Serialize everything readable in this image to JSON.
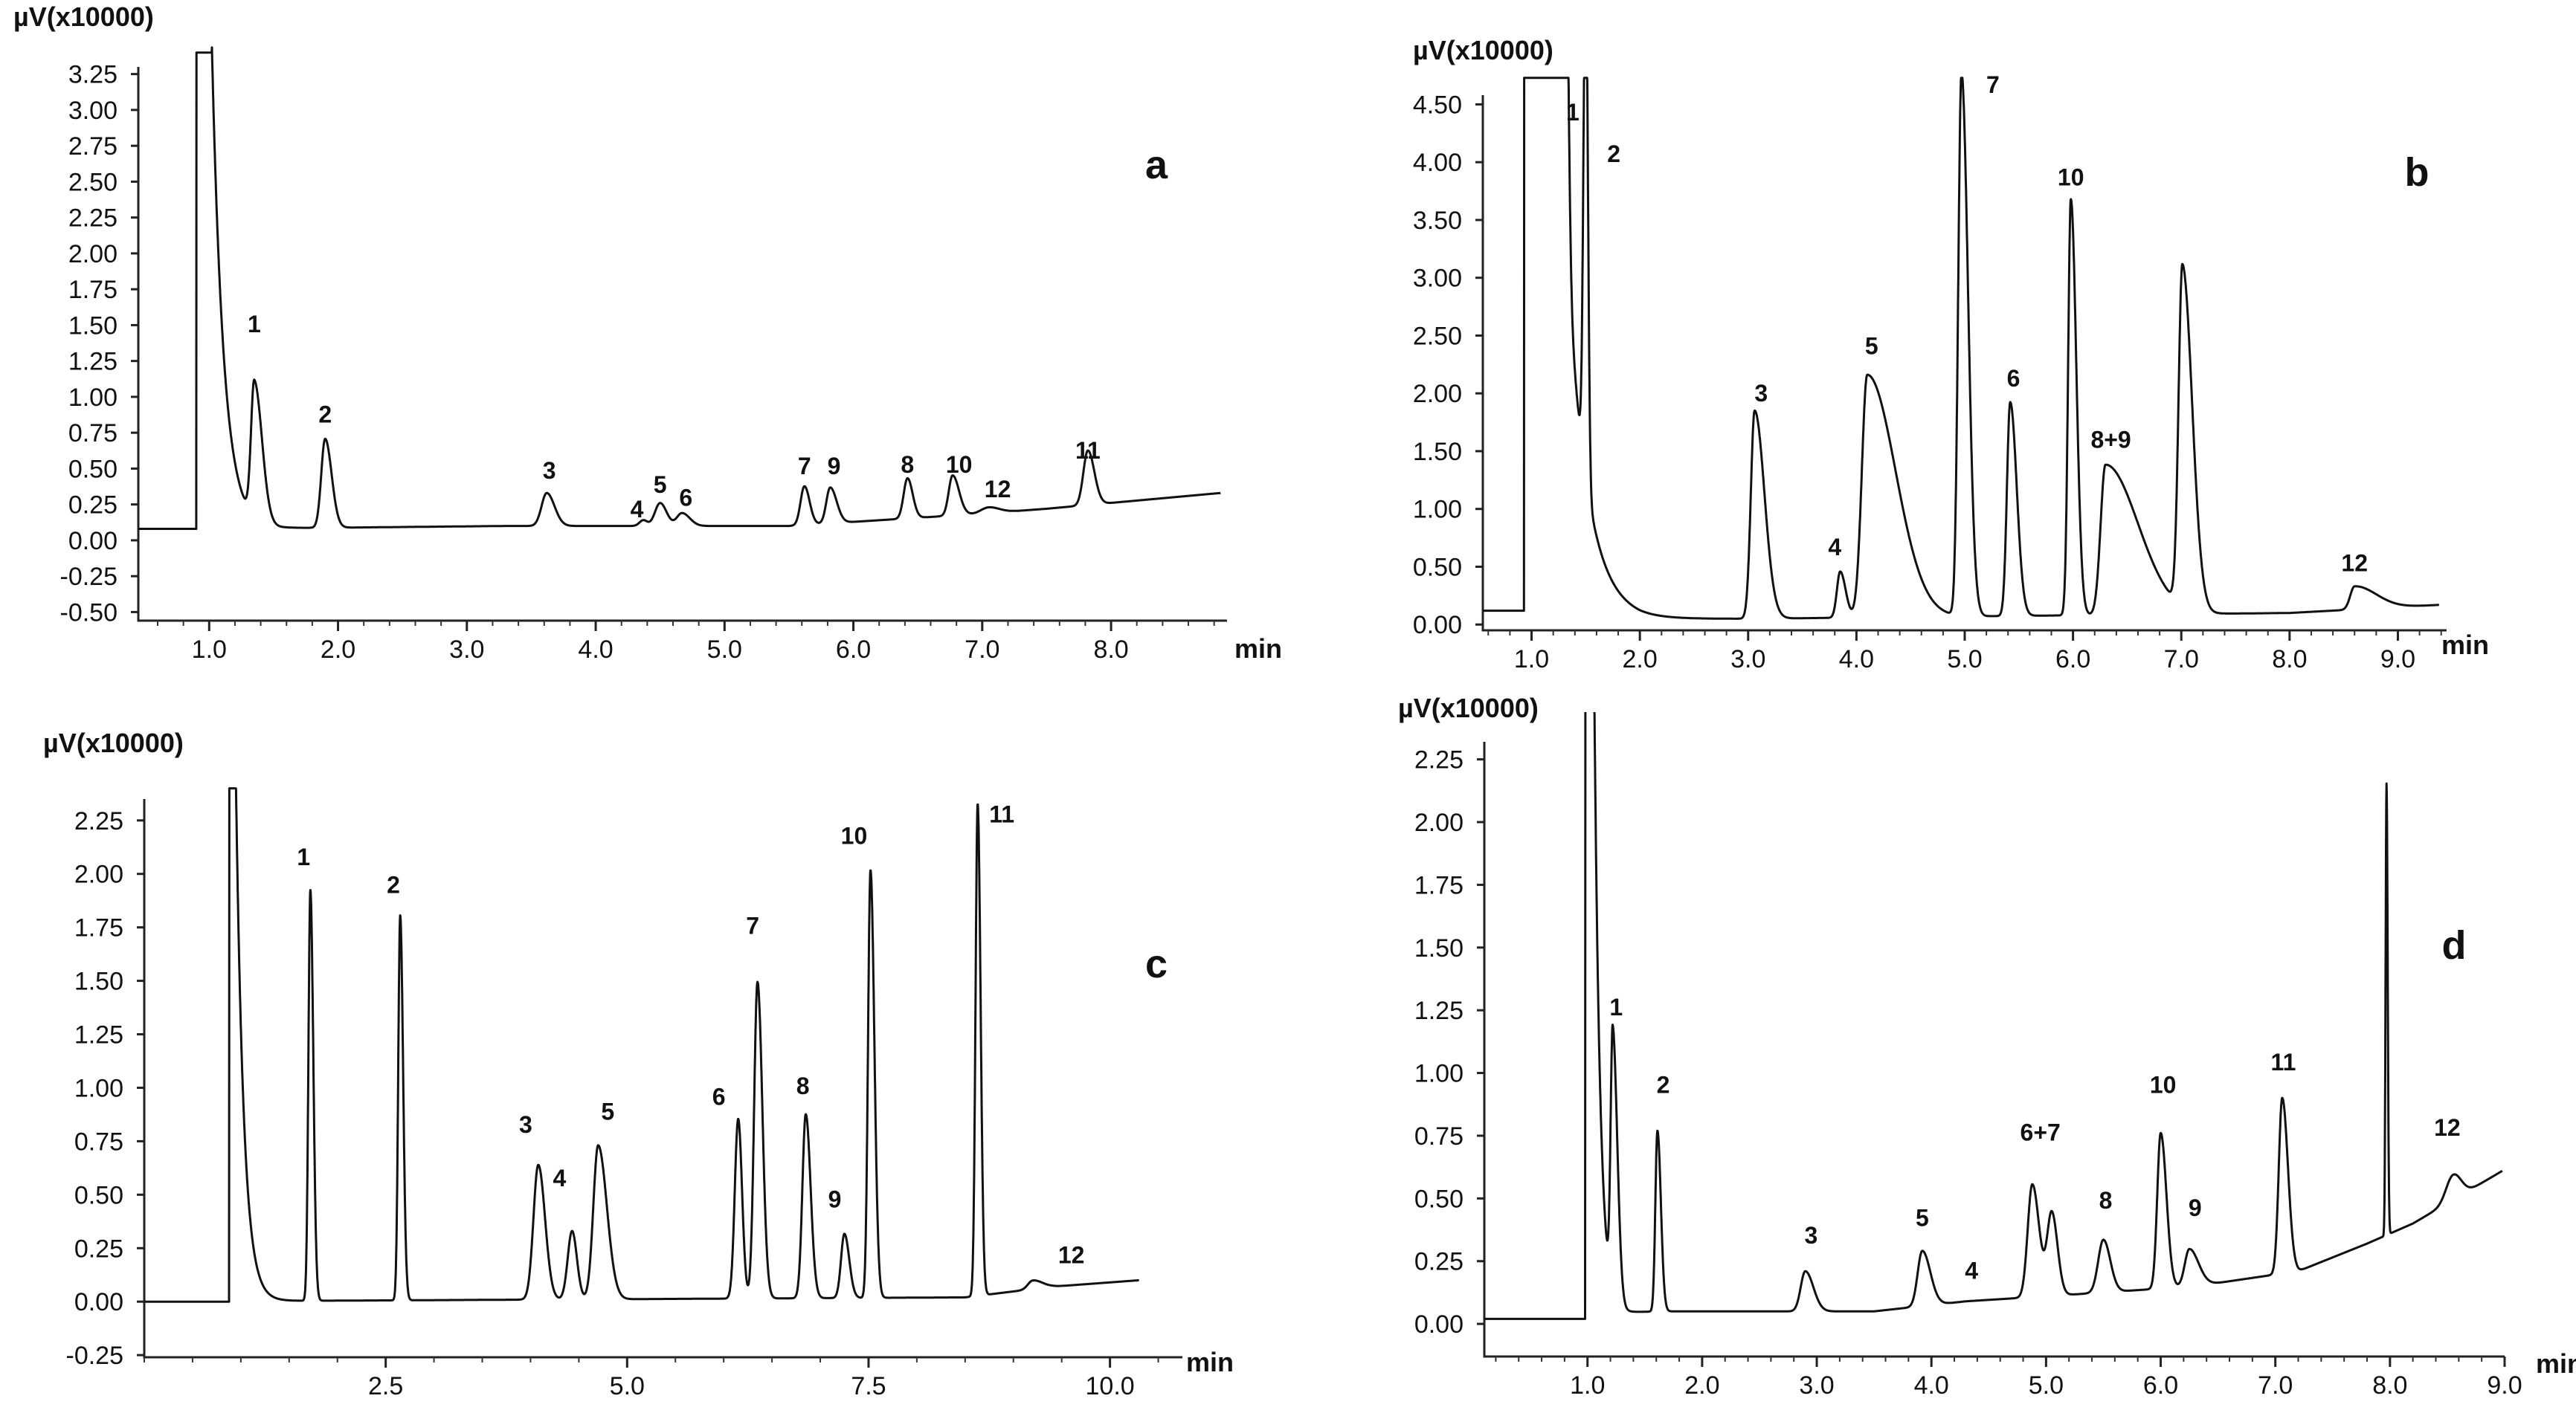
{
  "figure": {
    "panels": [
      {
        "id": "a",
        "letter": "a",
        "y_unit": "µV(x10000)",
        "x_unit": "min"
      },
      {
        "id": "b",
        "letter": "b",
        "y_unit": "µV(x10000)",
        "x_unit": "min"
      },
      {
        "id": "c",
        "letter": "c",
        "y_unit": "µV(x10000)",
        "x_unit": "min"
      },
      {
        "id": "d",
        "letter": "d",
        "y_unit": "µV(x10000)",
        "x_unit": "min"
      }
    ]
  },
  "chart_data": [
    {
      "panel": "a",
      "type": "line",
      "title": "a",
      "xlabel": "min",
      "ylabel": "µV(x10000)",
      "xlim": [
        0.45,
        8.9
      ],
      "ylim": [
        -0.56,
        3.3
      ],
      "xticks": [
        1.0,
        2.0,
        3.0,
        4.0,
        5.0,
        6.0,
        7.0,
        8.0
      ],
      "xtick_labels": [
        "1.0",
        "2.0",
        "3.0",
        "4.0",
        "5.0",
        "6.0",
        "7.0",
        "8.0"
      ],
      "yticks": [
        -0.5,
        -0.25,
        0.0,
        0.25,
        0.5,
        0.75,
        1.0,
        1.25,
        1.5,
        1.75,
        2.0,
        2.25,
        2.5,
        2.75,
        3.0,
        3.25
      ],
      "ytick_labels": [
        "-0.50",
        "-0.25",
        "0.00",
        "0.25",
        "0.50",
        "0.75",
        "1.00",
        "1.25",
        "1.50",
        "1.75",
        "2.00",
        "2.25",
        "2.50",
        "2.75",
        "3.00",
        "3.25"
      ],
      "trace": {
        "start_x": 0.45,
        "end_x": 8.85,
        "baseline": 0.08,
        "offscale_to": 3.4,
        "void_start": 0.9,
        "void_end": 1.02,
        "tail_amp": 3.4,
        "tail_tau": 0.09,
        "drift": [
          [
            1.0,
            0.08
          ],
          [
            2.2,
            0.09
          ],
          [
            3.3,
            0.1
          ],
          [
            5.5,
            0.1
          ],
          [
            6.9,
            0.18
          ],
          [
            7.5,
            0.22
          ],
          [
            8.85,
            0.33
          ]
        ],
        "peaks": [
          {
            "rt": 1.35,
            "height": 0.95,
            "width": 0.025,
            "tail": 0.06
          },
          {
            "rt": 1.9,
            "height": 0.62,
            "width": 0.03,
            "tail": 0.05
          },
          {
            "rt": 3.62,
            "height": 0.23,
            "width": 0.04,
            "tail": 0.06
          },
          {
            "rt": 4.37,
            "height": 0.04,
            "width": 0.03,
            "tail": 0.03
          },
          {
            "rt": 4.5,
            "height": 0.16,
            "width": 0.04,
            "tail": 0.05
          },
          {
            "rt": 4.67,
            "height": 0.09,
            "width": 0.04,
            "tail": 0.06
          },
          {
            "rt": 5.62,
            "height": 0.27,
            "width": 0.03,
            "tail": 0.04
          },
          {
            "rt": 5.82,
            "height": 0.25,
            "width": 0.03,
            "tail": 0.05
          },
          {
            "rt": 6.42,
            "height": 0.28,
            "width": 0.03,
            "tail": 0.04
          },
          {
            "rt": 6.77,
            "height": 0.28,
            "width": 0.03,
            "tail": 0.05
          },
          {
            "rt": 7.05,
            "height": 0.04,
            "width": 0.06,
            "tail": 0.08
          },
          {
            "rt": 7.82,
            "height": 0.38,
            "width": 0.035,
            "tail": 0.05
          }
        ]
      },
      "peak_labels": [
        {
          "text": "1",
          "x": 1.35,
          "y": 1.45
        },
        {
          "text": "2",
          "x": 1.9,
          "y": 0.82
        },
        {
          "text": "3",
          "x": 3.64,
          "y": 0.43
        },
        {
          "text": "4",
          "x": 4.32,
          "y": 0.16
        },
        {
          "text": "5",
          "x": 4.5,
          "y": 0.33
        },
        {
          "text": "6",
          "x": 4.7,
          "y": 0.24
        },
        {
          "text": "7",
          "x": 5.62,
          "y": 0.46
        },
        {
          "text": "9",
          "x": 5.85,
          "y": 0.46
        },
        {
          "text": "8",
          "x": 6.42,
          "y": 0.47
        },
        {
          "text": "10",
          "x": 6.82,
          "y": 0.47
        },
        {
          "text": "12",
          "x": 7.12,
          "y": 0.3
        },
        {
          "text": "11",
          "x": 7.82,
          "y": 0.57
        }
      ]
    },
    {
      "panel": "b",
      "type": "line",
      "title": "b",
      "xlabel": "min",
      "ylabel": "µV(x10000)",
      "xlim": [
        0.55,
        9.45
      ],
      "ylim": [
        -0.05,
        4.58
      ],
      "xticks": [
        1.0,
        2.0,
        3.0,
        4.0,
        5.0,
        6.0,
        7.0,
        8.0,
        9.0
      ],
      "xtick_labels": [
        "1.0",
        "2.0",
        "3.0",
        "4.0",
        "5.0",
        "6.0",
        "7.0",
        "8.0",
        "9.0"
      ],
      "yticks": [
        0.0,
        0.5,
        1.0,
        1.5,
        2.0,
        2.5,
        3.0,
        3.5,
        4.0,
        4.5
      ],
      "ytick_labels": [
        "0.00",
        "0.50",
        "1.00",
        "1.50",
        "2.00",
        "2.50",
        "3.00",
        "3.50",
        "4.00",
        "4.50"
      ],
      "trace": {
        "start_x": 0.55,
        "end_x": 9.38,
        "baseline": 0.12,
        "offscale_to": 4.8,
        "void_start": 0.93,
        "void_end": 1.27,
        "tail_amp": 4.3,
        "tail_tau": 0.18,
        "drift": [
          [
            1.0,
            0.12
          ],
          [
            2.0,
            0.05
          ],
          [
            3.0,
            0.05
          ],
          [
            8.0,
            0.1
          ],
          [
            9.38,
            0.17
          ]
        ],
        "peaks": [
          {
            "rt": 1.3,
            "height": 4.6,
            "width": 0.03,
            "tail": 0.03
          },
          {
            "rt": 1.5,
            "height": 4.6,
            "width": 0.02,
            "tail": 0.02
          },
          {
            "rt": 3.06,
            "height": 1.8,
            "width": 0.035,
            "tail": 0.09
          },
          {
            "rt": 3.85,
            "height": 0.4,
            "width": 0.03,
            "tail": 0.05
          },
          {
            "rt": 4.1,
            "height": 2.1,
            "width": 0.05,
            "tail": 0.26
          },
          {
            "rt": 4.97,
            "height": 4.7,
            "width": 0.03,
            "tail": 0.06
          },
          {
            "rt": 5.42,
            "height": 1.85,
            "width": 0.03,
            "tail": 0.06
          },
          {
            "rt": 5.98,
            "height": 3.6,
            "width": 0.025,
            "tail": 0.05
          },
          {
            "rt": 6.3,
            "height": 1.3,
            "width": 0.045,
            "tail": 0.3
          },
          {
            "rt": 7.01,
            "height": 2.95,
            "width": 0.035,
            "tail": 0.09
          },
          {
            "rt": 8.6,
            "height": 0.2,
            "width": 0.04,
            "tail": 0.2
          }
        ]
      },
      "peak_labels": [
        {
          "text": "1",
          "x": 1.38,
          "y": 4.36
        },
        {
          "text": "2",
          "x": 1.76,
          "y": 4.0
        },
        {
          "text": "3",
          "x": 3.12,
          "y": 1.93
        },
        {
          "text": "4",
          "x": 3.8,
          "y": 0.6
        },
        {
          "text": "5",
          "x": 4.14,
          "y": 2.34
        },
        {
          "text": "7",
          "x": 5.26,
          "y": 4.6
        },
        {
          "text": "6",
          "x": 5.45,
          "y": 2.06
        },
        {
          "text": "10",
          "x": 5.98,
          "y": 3.8
        },
        {
          "text": "8+9",
          "x": 6.35,
          "y": 1.53
        },
        {
          "text": "12",
          "x": 8.6,
          "y": 0.46
        }
      ]
    },
    {
      "panel": "c",
      "type": "line",
      "title": "c",
      "xlabel": "min",
      "ylabel": "µV(x10000)",
      "xlim": [
        0.0,
        10.75
      ],
      "ylim": [
        -0.26,
        2.35
      ],
      "xticks": [
        2.5,
        5.0,
        7.5,
        10.0
      ],
      "xtick_labels": [
        "2.5",
        "5.0",
        "7.5",
        "10.0"
      ],
      "yticks": [
        -0.25,
        0.0,
        0.25,
        0.5,
        0.75,
        1.0,
        1.25,
        1.5,
        1.75,
        2.0,
        2.25
      ],
      "ytick_labels": [
        "-0.25",
        "0.00",
        "0.25",
        "0.50",
        "0.75",
        "1.00",
        "1.25",
        "1.50",
        "1.75",
        "2.00",
        "2.25"
      ],
      "trace": {
        "start_x": 0.0,
        "end_x": 10.3,
        "baseline": 0.0,
        "offscale_to": 2.4,
        "void_start": 0.88,
        "void_end": 0.95,
        "tail_amp": 2.4,
        "tail_tau": 0.08,
        "drift": [
          [
            0.0,
            0.0
          ],
          [
            8.5,
            0.02
          ],
          [
            9.4,
            0.07
          ],
          [
            10.3,
            0.1
          ]
        ],
        "peaks": [
          {
            "rt": 1.72,
            "height": 1.92,
            "width": 0.02,
            "tail": 0.03
          },
          {
            "rt": 2.65,
            "height": 1.8,
            "width": 0.02,
            "tail": 0.03
          },
          {
            "rt": 4.08,
            "height": 0.63,
            "width": 0.05,
            "tail": 0.07
          },
          {
            "rt": 4.43,
            "height": 0.32,
            "width": 0.045,
            "tail": 0.05
          },
          {
            "rt": 4.7,
            "height": 0.72,
            "width": 0.05,
            "tail": 0.09
          },
          {
            "rt": 6.15,
            "height": 0.84,
            "width": 0.035,
            "tail": 0.04
          },
          {
            "rt": 6.35,
            "height": 1.48,
            "width": 0.035,
            "tail": 0.05
          },
          {
            "rt": 6.85,
            "height": 0.86,
            "width": 0.035,
            "tail": 0.05
          },
          {
            "rt": 7.25,
            "height": 0.3,
            "width": 0.035,
            "tail": 0.05
          },
          {
            "rt": 7.52,
            "height": 2.0,
            "width": 0.025,
            "tail": 0.04
          },
          {
            "rt": 8.63,
            "height": 2.3,
            "width": 0.022,
            "tail": 0.03
          },
          {
            "rt": 9.2,
            "height": 0.04,
            "width": 0.05,
            "tail": 0.1
          }
        ]
      },
      "peak_labels": [
        {
          "text": "1",
          "x": 1.65,
          "y": 2.04
        },
        {
          "text": "2",
          "x": 2.58,
          "y": 1.91
        },
        {
          "text": "3",
          "x": 3.95,
          "y": 0.79
        },
        {
          "text": "4",
          "x": 4.3,
          "y": 0.54
        },
        {
          "text": "5",
          "x": 4.8,
          "y": 0.85
        },
        {
          "text": "6",
          "x": 5.95,
          "y": 0.92
        },
        {
          "text": "7",
          "x": 6.3,
          "y": 1.72
        },
        {
          "text": "8",
          "x": 6.82,
          "y": 0.97
        },
        {
          "text": "9",
          "x": 7.15,
          "y": 0.44
        },
        {
          "text": "10",
          "x": 7.35,
          "y": 2.14
        },
        {
          "text": "11",
          "x": 8.88,
          "y": 2.24
        },
        {
          "text": "12",
          "x": 9.6,
          "y": 0.18
        }
      ]
    },
    {
      "panel": "d",
      "type": "line",
      "title": "d",
      "xlabel": "min",
      "ylabel": "µV(x10000)",
      "xlim": [
        0.1,
        9.0
      ],
      "ylim": [
        -0.13,
        2.32
      ],
      "xticks": [
        1.0,
        2.0,
        3.0,
        4.0,
        5.0,
        6.0,
        7.0,
        8.0,
        9.0
      ],
      "xtick_labels": [
        "1.0",
        "2.0",
        "3.0",
        "4.0",
        "5.0",
        "6.0",
        "7.0",
        "8.0",
        "9.0"
      ],
      "yticks": [
        0.0,
        0.25,
        0.5,
        0.75,
        1.0,
        1.25,
        1.5,
        1.75,
        2.0,
        2.25
      ],
      "ytick_labels": [
        "0.00",
        "0.25",
        "0.50",
        "0.75",
        "1.00",
        "1.25",
        "1.50",
        "1.75",
        "2.00",
        "2.25"
      ],
      "trace": {
        "start_x": 0.1,
        "end_x": 8.98,
        "baseline": 0.02,
        "offscale_to": 2.45,
        "void_start": 0.98,
        "void_end": 1.06,
        "tail_amp": 2.45,
        "tail_tau": 0.05,
        "drift": [
          [
            0.1,
            0.02
          ],
          [
            1.6,
            0.05
          ],
          [
            3.5,
            0.05
          ],
          [
            4.3,
            0.09
          ],
          [
            5.0,
            0.11
          ],
          [
            6.3,
            0.15
          ],
          [
            7.2,
            0.21
          ],
          [
            7.8,
            0.32
          ],
          [
            8.2,
            0.4
          ],
          [
            8.98,
            0.61
          ]
        ],
        "peaks": [
          {
            "rt": 1.22,
            "height": 1.05,
            "width": 0.018,
            "tail": 0.04
          },
          {
            "rt": 1.61,
            "height": 0.72,
            "width": 0.018,
            "tail": 0.03
          },
          {
            "rt": 2.9,
            "height": 0.16,
            "width": 0.04,
            "tail": 0.07
          },
          {
            "rt": 3.92,
            "height": 0.22,
            "width": 0.04,
            "tail": 0.07
          },
          {
            "rt": 4.88,
            "height": 0.45,
            "width": 0.04,
            "tail": 0.06
          },
          {
            "rt": 5.05,
            "height": 0.33,
            "width": 0.04,
            "tail": 0.05
          },
          {
            "rt": 5.5,
            "height": 0.21,
            "width": 0.045,
            "tail": 0.06
          },
          {
            "rt": 6.0,
            "height": 0.62,
            "width": 0.03,
            "tail": 0.05
          },
          {
            "rt": 6.25,
            "height": 0.15,
            "width": 0.04,
            "tail": 0.08
          },
          {
            "rt": 7.06,
            "height": 0.7,
            "width": 0.03,
            "tail": 0.05
          },
          {
            "rt": 7.97,
            "height": 1.8,
            "width": 0.008,
            "tail": 0.01
          },
          {
            "rt": 8.55,
            "height": 0.1,
            "width": 0.06,
            "tail": 0.07
          }
        ]
      },
      "peak_labels": [
        {
          "text": "1",
          "x": 1.25,
          "y": 1.23
        },
        {
          "text": "2",
          "x": 1.66,
          "y": 0.92
        },
        {
          "text": "3",
          "x": 2.95,
          "y": 0.32
        },
        {
          "text": "4",
          "x": 4.35,
          "y": 0.18
        },
        {
          "text": "5",
          "x": 3.92,
          "y": 0.39
        },
        {
          "text": "6+7",
          "x": 4.95,
          "y": 0.73
        },
        {
          "text": "8",
          "x": 5.52,
          "y": 0.46
        },
        {
          "text": "10",
          "x": 6.02,
          "y": 0.92
        },
        {
          "text": "9",
          "x": 6.3,
          "y": 0.43
        },
        {
          "text": "11",
          "x": 7.07,
          "y": 1.01
        },
        {
          "text": "12",
          "x": 8.5,
          "y": 0.75
        }
      ]
    }
  ]
}
